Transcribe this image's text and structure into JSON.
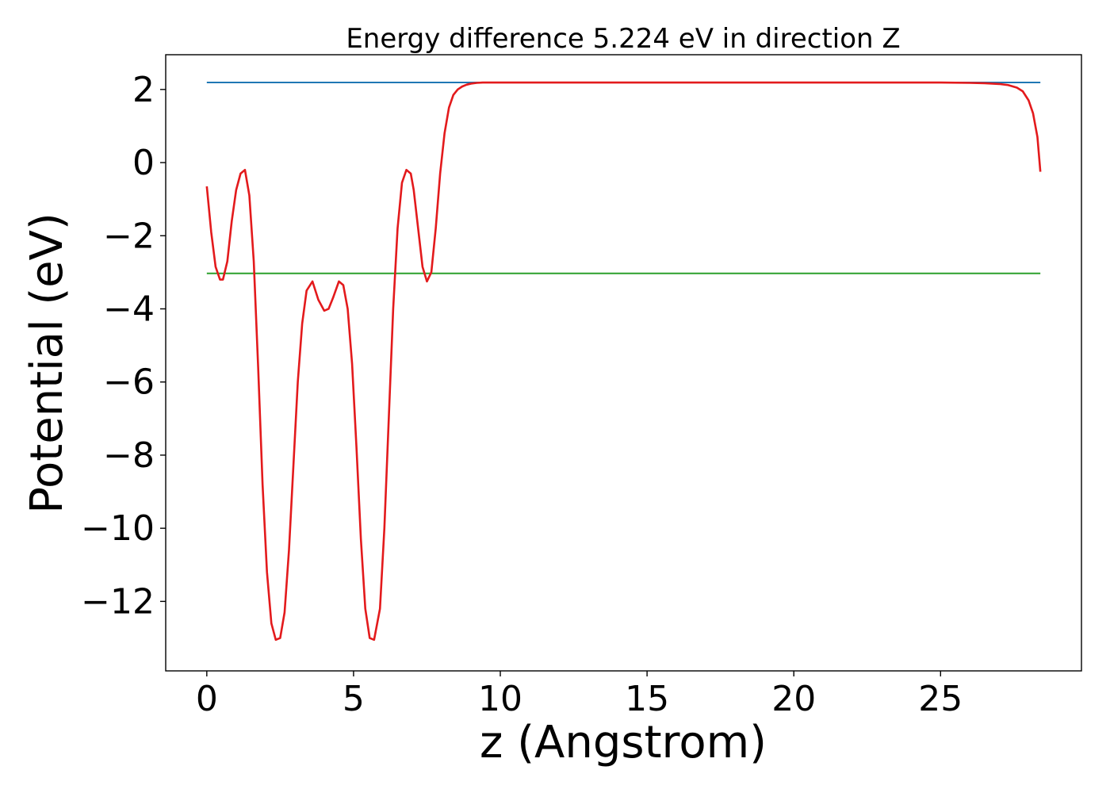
{
  "chart_data": {
    "type": "line",
    "title": "Energy difference 5.224 eV in direction Z",
    "xlabel": "z (Angstrom)",
    "ylabel": "Potential (eV)",
    "xlim": [
      -1.4,
      29.8
    ],
    "ylim": [
      -13.9,
      2.95
    ],
    "xticks": [
      0,
      5,
      10,
      15,
      20,
      25
    ],
    "xtick_labels": [
      "0",
      "5",
      "10",
      "15",
      "20",
      "25"
    ],
    "yticks": [
      2,
      0,
      -2,
      -4,
      -6,
      -8,
      -10,
      -12
    ],
    "ytick_labels": [
      "2",
      "0",
      "−2",
      "−4",
      "−6",
      "−8",
      "−10",
      "−12"
    ],
    "grid": false,
    "series": [
      {
        "color": "#1f77b4",
        "kind": "horizontal",
        "x": [
          0,
          28.4
        ],
        "y": [
          2.19,
          2.19
        ]
      },
      {
        "color": "#2ca02c",
        "kind": "horizontal",
        "x": [
          0,
          28.4
        ],
        "y": [
          -3.03,
          -3.03
        ]
      },
      {
        "color": "#e31a1c",
        "kind": "curve",
        "x": [
          0,
          0.15,
          0.3,
          0.45,
          0.55,
          0.7,
          0.85,
          1.0,
          1.15,
          1.3,
          1.45,
          1.6,
          1.75,
          1.9,
          2.05,
          2.2,
          2.35,
          2.5,
          2.65,
          2.8,
          2.95,
          3.1,
          3.25,
          3.4,
          3.6,
          3.8,
          4.0,
          4.15,
          4.3,
          4.5,
          4.65,
          4.8,
          4.95,
          5.1,
          5.25,
          5.4,
          5.55,
          5.7,
          5.9,
          6.05,
          6.2,
          6.35,
          6.5,
          6.65,
          6.8,
          6.95,
          7.05,
          7.2,
          7.35,
          7.5,
          7.65,
          7.8,
          7.95,
          8.1,
          8.25,
          8.4,
          8.55,
          8.7,
          8.85,
          9.0,
          9.2,
          9.4,
          9.6,
          9.8,
          10.2,
          11,
          13,
          15,
          17,
          19,
          21,
          23,
          25,
          26,
          26.5,
          27,
          27.3,
          27.6,
          27.8,
          28.0,
          28.15,
          28.3,
          28.4
        ],
        "y": [
          -0.65,
          -1.9,
          -2.85,
          -3.2,
          -3.2,
          -2.7,
          -1.6,
          -0.75,
          -0.3,
          -0.2,
          -0.9,
          -2.7,
          -5.6,
          -8.8,
          -11.2,
          -12.6,
          -13.05,
          -13.0,
          -12.3,
          -10.6,
          -8.3,
          -6.0,
          -4.4,
          -3.5,
          -3.25,
          -3.75,
          -4.05,
          -4.0,
          -3.7,
          -3.25,
          -3.35,
          -4.0,
          -5.5,
          -7.8,
          -10.3,
          -12.2,
          -13.0,
          -13.05,
          -12.2,
          -10.0,
          -7.0,
          -4.0,
          -1.8,
          -0.55,
          -0.2,
          -0.3,
          -0.75,
          -1.8,
          -2.85,
          -3.25,
          -3.0,
          -1.8,
          -0.3,
          0.8,
          1.5,
          1.85,
          2.0,
          2.08,
          2.13,
          2.16,
          2.18,
          2.19,
          2.19,
          2.19,
          2.19,
          2.19,
          2.19,
          2.19,
          2.19,
          2.19,
          2.19,
          2.19,
          2.19,
          2.18,
          2.17,
          2.15,
          2.12,
          2.05,
          1.95,
          1.7,
          1.35,
          0.7,
          -0.25
        ]
      }
    ]
  }
}
